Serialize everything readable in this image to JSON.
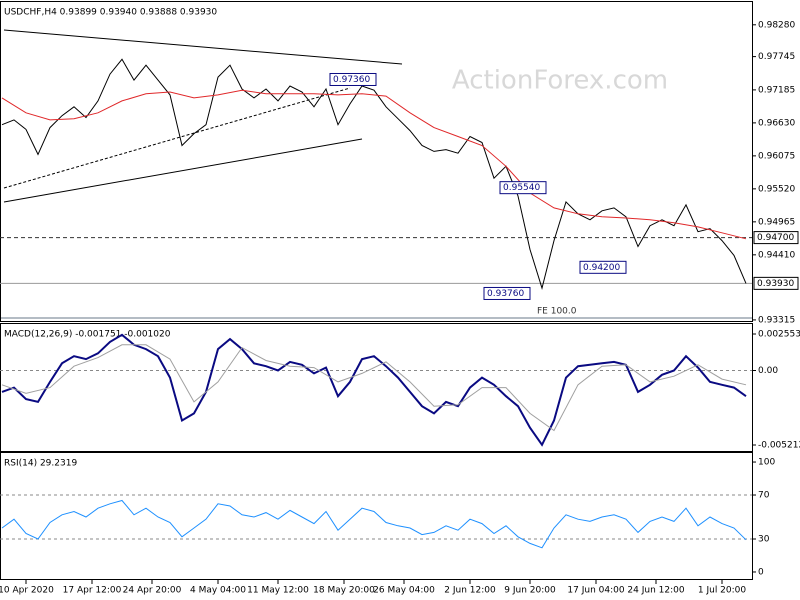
{
  "chart_data": [
    {
      "type": "line",
      "title": "USDCHF,H4  0.93899 0.93940 0.93888 0.93930",
      "watermark": "ActionForex.com",
      "fe_label": "FE 100.0",
      "ylim": [
        0.9328,
        0.9863
      ],
      "yticks": [
        {
          "value": 0.9828,
          "label": "0.98280"
        },
        {
          "value": 0.97745,
          "label": "0.97745"
        },
        {
          "value": 0.97185,
          "label": "0.97185"
        },
        {
          "value": 0.9663,
          "label": "0.96630"
        },
        {
          "value": 0.96075,
          "label": "0.96075"
        },
        {
          "value": 0.9552,
          "label": "0.95520"
        },
        {
          "value": 0.94965,
          "label": "0.94965"
        },
        {
          "value": 0.9441,
          "label": "0.94410"
        },
        {
          "value": 0.93315,
          "label": "0.93315"
        }
      ],
      "levels": [
        {
          "value": 0.947,
          "label": "0.94700",
          "style": "dashed"
        },
        {
          "value": 0.9393,
          "label": "0.93930",
          "style": "solid"
        }
      ],
      "annotations": [
        {
          "value": 0.9736,
          "label": "0.97360"
        },
        {
          "value": 0.9554,
          "label": "0.95540"
        },
        {
          "value": 0.942,
          "label": "0.94200"
        },
        {
          "value": 0.9376,
          "label": "0.93760"
        }
      ],
      "series": [
        {
          "color": "#000000",
          "x": [
            0,
            2,
            4,
            6,
            8,
            10,
            12,
            14,
            16,
            18,
            20,
            22,
            24,
            26,
            28,
            30,
            32,
            34,
            36,
            38,
            40,
            42,
            44,
            46,
            48,
            50,
            52,
            54,
            56,
            58,
            60,
            62,
            64,
            66,
            68,
            70,
            72,
            74,
            76,
            78,
            80,
            82,
            84,
            86,
            88,
            90,
            92,
            94,
            96,
            98,
            100,
            102,
            104,
            106,
            108,
            110,
            112,
            114,
            116,
            118,
            120,
            122,
            124
          ],
          "values": [
            0.966,
            0.9668,
            0.9652,
            0.961,
            0.9655,
            0.9675,
            0.969,
            0.9672,
            0.97,
            0.9745,
            0.977,
            0.9735,
            0.976,
            0.9735,
            0.971,
            0.9625,
            0.9645,
            0.966,
            0.974,
            0.976,
            0.972,
            0.9705,
            0.972,
            0.97,
            0.9725,
            0.9715,
            0.969,
            0.972,
            0.966,
            0.9695,
            0.9725,
            0.9718,
            0.969,
            0.967,
            0.965,
            0.9625,
            0.9615,
            0.9618,
            0.9612,
            0.964,
            0.963,
            0.957,
            0.959,
            0.954,
            0.945,
            0.9385,
            0.9465,
            0.953,
            0.951,
            0.95,
            0.9515,
            0.952,
            0.9505,
            0.9455,
            0.949,
            0.95,
            0.949,
            0.9525,
            0.948,
            0.9485,
            0.9465,
            0.944,
            0.9393
          ]
        },
        {
          "color": "#e0282a",
          "x": [
            0,
            4,
            8,
            12,
            16,
            20,
            24,
            28,
            32,
            36,
            40,
            44,
            48,
            52,
            56,
            60,
            64,
            68,
            72,
            76,
            80,
            84,
            88,
            92,
            96,
            100,
            104,
            108,
            112,
            116,
            120,
            124
          ],
          "values": [
            0.9705,
            0.968,
            0.9668,
            0.967,
            0.968,
            0.97,
            0.9712,
            0.9715,
            0.9705,
            0.971,
            0.9718,
            0.9712,
            0.9712,
            0.9712,
            0.971,
            0.9712,
            0.9708,
            0.968,
            0.9655,
            0.964,
            0.9625,
            0.959,
            0.9545,
            0.952,
            0.951,
            0.9505,
            0.9503,
            0.95,
            0.9495,
            0.9488,
            0.9478,
            0.9468
          ]
        }
      ]
    },
    {
      "type": "line",
      "title": "MACD(12,26,9) -0.001751 -0.001020",
      "ylim": [
        -0.005702,
        0.003113
      ],
      "yticks": [
        0.002553,
        {
          "value": 0,
          "label": "0.00"
        },
        -0.005212
      ],
      "level_lines": [
        0
      ],
      "series": [
        {
          "color": "#0a0a82",
          "x": [
            0,
            2,
            4,
            6,
            8,
            10,
            12,
            14,
            16,
            18,
            20,
            22,
            24,
            26,
            28,
            30,
            32,
            34,
            36,
            38,
            40,
            42,
            44,
            46,
            48,
            50,
            52,
            54,
            56,
            58,
            60,
            62,
            64,
            66,
            68,
            70,
            72,
            74,
            76,
            78,
            80,
            82,
            84,
            86,
            88,
            90,
            92,
            94,
            96,
            98,
            100,
            102,
            104,
            106,
            108,
            110,
            112,
            114,
            116,
            118,
            120,
            122,
            124
          ],
          "values": [
            -0.0015,
            -0.0012,
            -0.002,
            -0.0022,
            -0.0008,
            0.0005,
            0.001,
            0.0008,
            0.0012,
            0.002,
            0.0025,
            0.0018,
            0.0015,
            0.001,
            -0.0005,
            -0.0035,
            -0.003,
            -0.0015,
            0.0015,
            0.0022,
            0.0015,
            0.0005,
            0.0003,
            0,
            0.0006,
            0.0004,
            -0.0002,
            0.0002,
            -0.0018,
            -0.0008,
            0.0008,
            0.001,
            0.0003,
            -0.0005,
            -0.0015,
            -0.0025,
            -0.003,
            -0.0022,
            -0.0025,
            -0.0012,
            -0.0005,
            -0.001,
            -0.0018,
            -0.0025,
            -0.004,
            -0.0052,
            -0.0035,
            -0.0005,
            0.0003,
            0.0004,
            0.0005,
            0.0006,
            0.0004,
            -0.0015,
            -0.001,
            -0.0003,
            0,
            0.001,
            0.0002,
            -0.0008,
            -0.001,
            -0.0012,
            -0.0018
          ]
        },
        {
          "color": "#a0a0a0",
          "x": [
            0,
            4,
            8,
            12,
            16,
            20,
            24,
            28,
            32,
            36,
            40,
            44,
            48,
            52,
            56,
            60,
            64,
            68,
            72,
            76,
            80,
            84,
            88,
            92,
            96,
            100,
            104,
            108,
            112,
            116,
            120,
            124
          ],
          "values": [
            -0.001,
            -0.0016,
            -0.0012,
            0.0003,
            0.0009,
            0.0018,
            0.0018,
            0.0008,
            -0.0022,
            -0.0008,
            0.0016,
            0.0007,
            0.0003,
            0.0002,
            -0.0008,
            -0.0002,
            0.0006,
            -0.0008,
            -0.0025,
            -0.0024,
            -0.0012,
            -0.0012,
            -0.003,
            -0.0042,
            -0.001,
            0.0003,
            0.0004,
            -0.0008,
            -0.0004,
            0.0004,
            -0.0006,
            -0.001
          ]
        }
      ]
    },
    {
      "type": "line",
      "title": "RSI(14) 29.2319",
      "ylim": [
        -7.3,
        106.4
      ],
      "yticks": [
        100,
        70,
        30,
        0
      ],
      "level_lines": [
        70,
        30
      ],
      "xlim": [
        0,
        124
      ],
      "xticks": [
        {
          "value": 4,
          "label": "10 Apr 2020"
        },
        {
          "value": 15,
          "label": "17 Apr 12:00"
        },
        {
          "value": 25,
          "label": "24 Apr 20:00"
        },
        {
          "value": 36,
          "label": "4 May 04:00"
        },
        {
          "value": 46,
          "label": "11 May 12:00"
        },
        {
          "value": 57,
          "label": "18 May 20:00"
        },
        {
          "value": 67,
          "label": "26 May 04:00"
        },
        {
          "value": 78,
          "label": "2 Jun 12:00"
        },
        {
          "value": 88,
          "label": "9 Jun 20:00"
        },
        {
          "value": 99,
          "label": "17 Jun 04:00"
        },
        {
          "value": 109,
          "label": "24 Jun 12:00"
        },
        {
          "value": 120,
          "label": "1 Jul 20:00"
        }
      ],
      "series": [
        {
          "color": "#1e90ff",
          "x": [
            0,
            2,
            4,
            6,
            8,
            10,
            12,
            14,
            16,
            18,
            20,
            22,
            24,
            26,
            28,
            30,
            32,
            34,
            36,
            38,
            40,
            42,
            44,
            46,
            48,
            50,
            52,
            54,
            56,
            58,
            60,
            62,
            64,
            66,
            68,
            70,
            72,
            74,
            76,
            78,
            80,
            82,
            84,
            86,
            88,
            90,
            92,
            94,
            96,
            98,
            100,
            102,
            104,
            106,
            108,
            110,
            112,
            114,
            116,
            118,
            120,
            122,
            124
          ],
          "values": [
            40,
            48,
            35,
            30,
            45,
            52,
            55,
            50,
            58,
            62,
            65,
            52,
            58,
            50,
            45,
            32,
            40,
            48,
            62,
            60,
            52,
            50,
            54,
            48,
            56,
            50,
            44,
            55,
            38,
            48,
            58,
            55,
            45,
            42,
            40,
            34,
            36,
            42,
            38,
            48,
            44,
            35,
            42,
            32,
            26,
            22,
            40,
            52,
            48,
            46,
            50,
            52,
            48,
            36,
            46,
            50,
            46,
            58,
            42,
            50,
            44,
            40,
            29.2319
          ]
        }
      ]
    }
  ]
}
